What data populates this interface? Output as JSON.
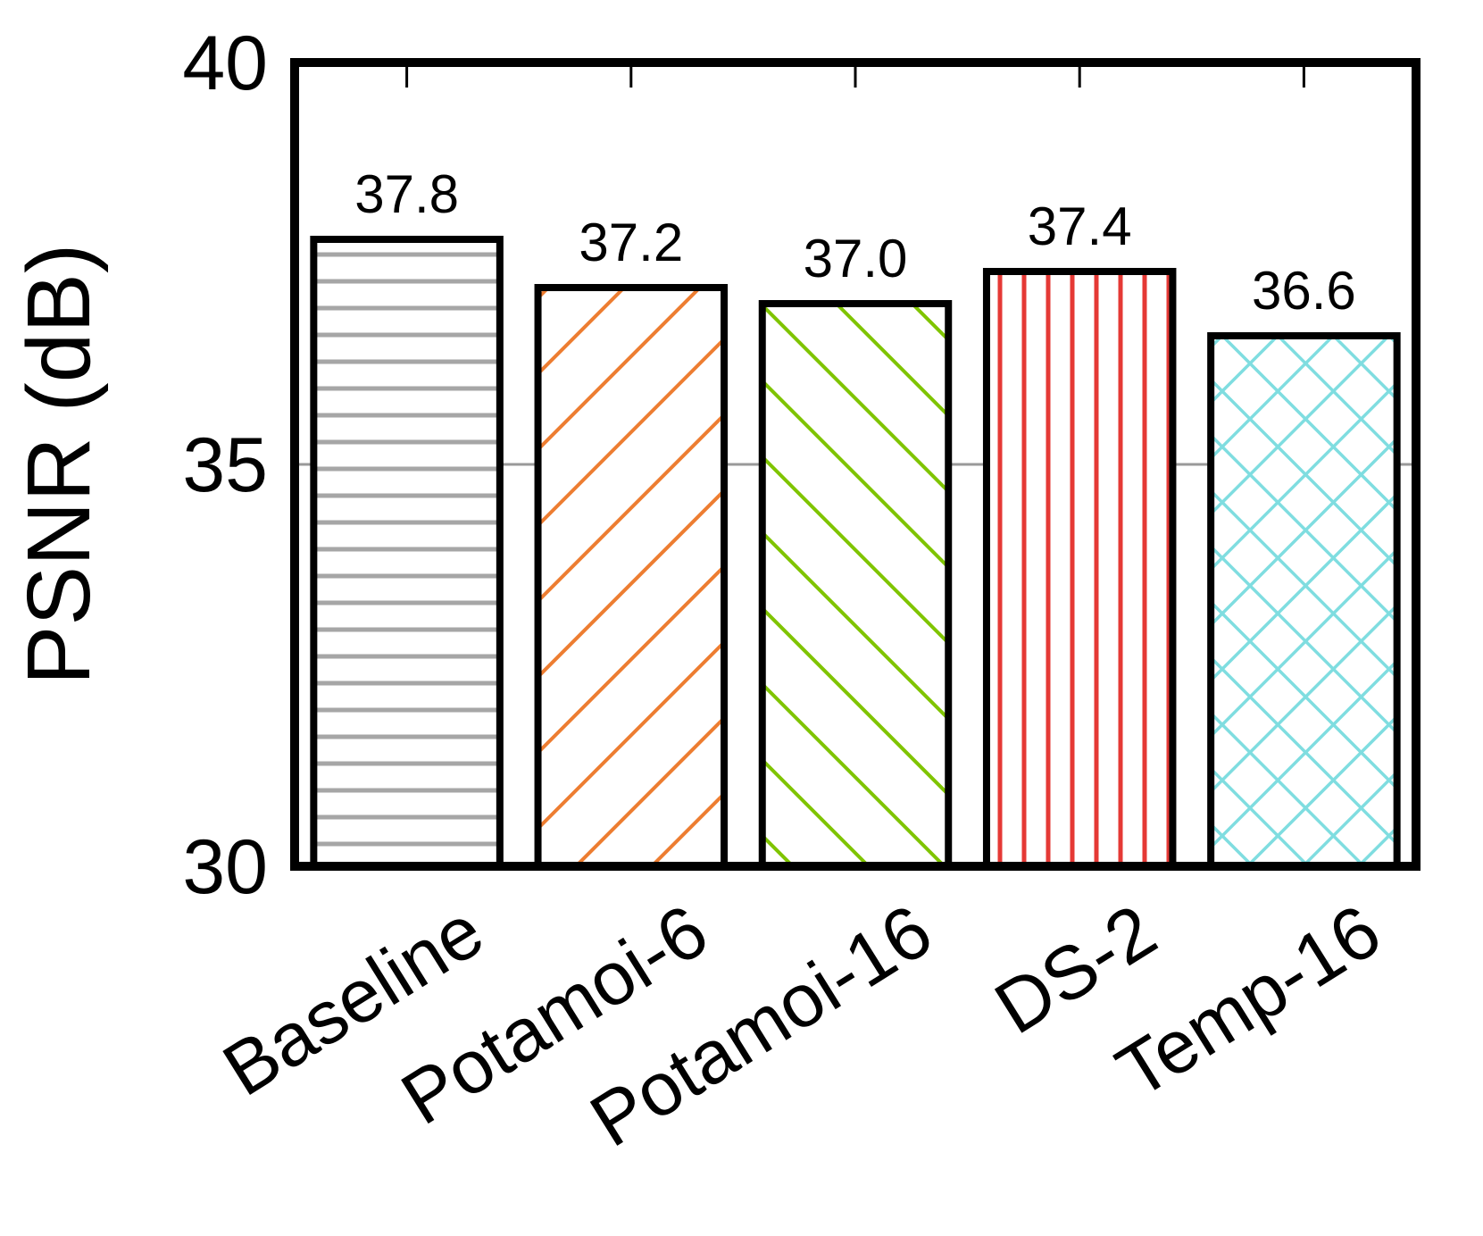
{
  "chart_data": {
    "type": "bar",
    "title": "",
    "xlabel": "",
    "ylabel": "PSNR (dB)",
    "ylim": [
      30,
      40
    ],
    "yticks": [
      30,
      35,
      40
    ],
    "categories": [
      "Baseline",
      "Potamoi-6",
      "Potamoi-16",
      "DS-2",
      "Temp-16"
    ],
    "values": [
      37.8,
      37.2,
      37.0,
      37.4,
      36.6
    ],
    "value_labels": [
      "37.8",
      "37.2",
      "37.0",
      "37.4",
      "36.6"
    ],
    "grid": false,
    "legend": "none",
    "series_styles": [
      {
        "pattern": "horizontal-lines",
        "color": "#a6a6a6"
      },
      {
        "pattern": "diagonal-backslash",
        "color": "#ed7d31"
      },
      {
        "pattern": "diagonal-slash",
        "color": "#7fc400"
      },
      {
        "pattern": "vertical-lines",
        "color": "#e53935"
      },
      {
        "pattern": "crosshatch",
        "color": "#7fdde0"
      }
    ]
  }
}
